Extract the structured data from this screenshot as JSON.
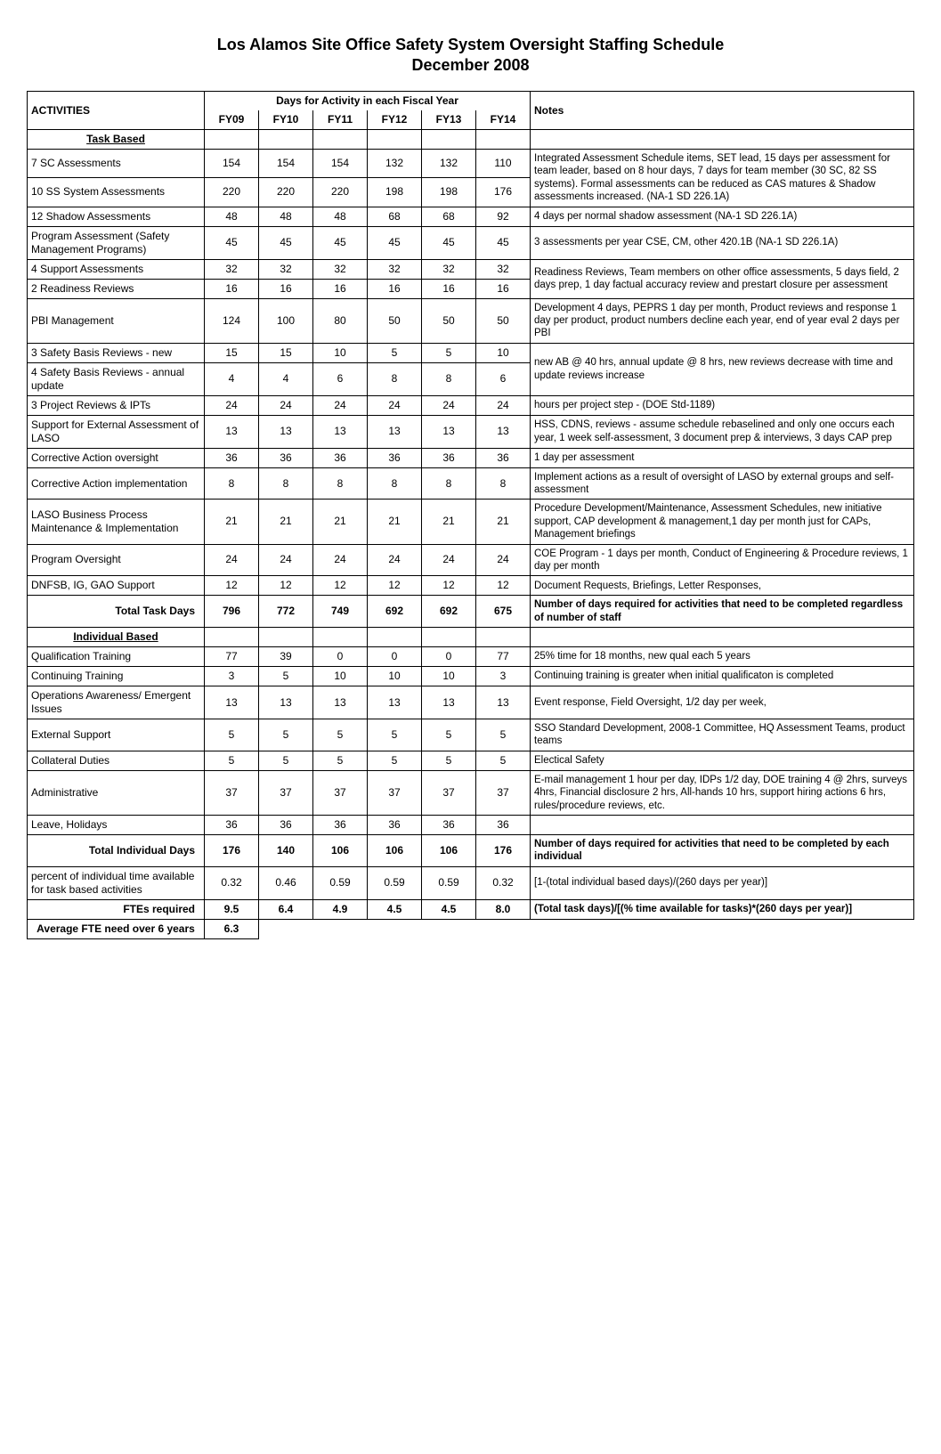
{
  "title": "Los Alamos Site Office Safety System Oversight Staffing Schedule",
  "subtitle": "December 2008",
  "header": {
    "activities": "ACTIVITIES",
    "fy_super": "Days for Activity in each Fiscal Year",
    "fy09": "FY09",
    "fy10": "FY10",
    "fy11": "FY11",
    "fy12": "FY12",
    "fy13": "FY13",
    "fy14": "FY14",
    "notes": "Notes"
  },
  "sections": {
    "task_based": "Task Based",
    "individual_based": "Individual Based"
  },
  "rows": {
    "r1": {
      "act": "7 SC Assessments",
      "v": [
        "154",
        "154",
        "154",
        "132",
        "132",
        "110"
      ],
      "note": "Integrated Assessment Schedule items, SET lead, 15 days per assessment for team leader, based on 8 hour days, 7 days for team member (30 SC, 82 SS systems).  Formal assessments can be reduced as CAS matures & Shadow assessments increased.  (NA-1 SD 226.1A)",
      "rowspan_note": 2
    },
    "r2": {
      "act": "10 SS System Assessments",
      "v": [
        "220",
        "220",
        "220",
        "198",
        "198",
        "176"
      ]
    },
    "r3": {
      "act": "12 Shadow Assessments",
      "v": [
        "48",
        "48",
        "48",
        "68",
        "68",
        "92"
      ],
      "note": "4 days per normal shadow assessment (NA-1 SD 226.1A)"
    },
    "r4": {
      "act": "Program Assessment (Safety Management Programs)",
      "v": [
        "45",
        "45",
        "45",
        "45",
        "45",
        "45"
      ],
      "note": "3 assessments per year CSE, CM, other 420.1B (NA-1 SD 226.1A)"
    },
    "r5": {
      "act": "4 Support Assessments",
      "v": [
        "32",
        "32",
        "32",
        "32",
        "32",
        "32"
      ],
      "note": "Readiness Reviews, Team members on other office assessments, 5 days field, 2 days prep, 1 day factual accuracy review and prestart closure per assessment",
      "rowspan_note": 2
    },
    "r6": {
      "act": "2 Readiness Reviews",
      "v": [
        "16",
        "16",
        "16",
        "16",
        "16",
        "16"
      ]
    },
    "r7": {
      "act": "PBI Management",
      "v": [
        "124",
        "100",
        "80",
        "50",
        "50",
        "50"
      ],
      "note": "Development 4 days, PEPRS 1 day per month, Product reviews and response 1 day per product, product numbers decline each year, end of year eval 2 days per PBI"
    },
    "r8": {
      "act": "3 Safety Basis Reviews - new",
      "v": [
        "15",
        "15",
        "10",
        "5",
        "5",
        "10"
      ],
      "note": "new AB @ 40 hrs, annual update @ 8 hrs, new reviews decrease with time and update reviews increase",
      "rowspan_note": 2
    },
    "r9": {
      "act": "4 Safety Basis Reviews - annual update",
      "v": [
        "4",
        "4",
        "6",
        "8",
        "8",
        "6"
      ]
    },
    "r10": {
      "act": "3 Project Reviews & IPTs",
      "v": [
        "24",
        "24",
        "24",
        "24",
        "24",
        "24"
      ],
      "note": "hours per project step - (DOE Std-1189)"
    },
    "r11": {
      "act": "Support for External Assessment of LASO",
      "v": [
        "13",
        "13",
        "13",
        "13",
        "13",
        "13"
      ],
      "note": "HSS, CDNS, reviews - assume schedule rebaselined and only one occurs each year, 1 week self-assessment, 3 document prep & interviews, 3 days CAP prep"
    },
    "r12": {
      "act": "Corrective Action oversight",
      "v": [
        "36",
        "36",
        "36",
        "36",
        "36",
        "36"
      ],
      "note": "1 day per assessment"
    },
    "r13": {
      "act": "Corrective Action implementation",
      "v": [
        "8",
        "8",
        "8",
        "8",
        "8",
        "8"
      ],
      "note": "Implement actions as a result of oversight of LASO by external groups and self-assessment"
    },
    "r14": {
      "act": "LASO Business Process Maintenance & Implementation",
      "v": [
        "21",
        "21",
        "21",
        "21",
        "21",
        "21"
      ],
      "note": "Procedure Development/Maintenance, Assessment Schedules, new initiative support, CAP development & management,1 day per month just for CAPs, Management briefings"
    },
    "r15": {
      "act": "Program Oversight",
      "v": [
        "24",
        "24",
        "24",
        "24",
        "24",
        "24"
      ],
      "note": "COE Program - 1 days per month, Conduct of Engineering & Procedure reviews, 1 day per month"
    },
    "r16": {
      "act": "DNFSB, IG, GAO Support",
      "v": [
        "12",
        "12",
        "12",
        "12",
        "12",
        "12"
      ],
      "note": "Document Requests, Briefings, Letter Responses,"
    },
    "total_task": {
      "act": "Total Task Days",
      "v": [
        "796",
        "772",
        "749",
        "692",
        "692",
        "675"
      ],
      "note": "Number of days required for activities that need to be completed regardless of number of staff"
    },
    "i1": {
      "act": "Qualification Training",
      "v": [
        "77",
        "39",
        "0",
        "0",
        "0",
        "77"
      ],
      "note": "25% time for 18 months, new qual each 5 years"
    },
    "i2": {
      "act": "Continuing Training",
      "v": [
        "3",
        "5",
        "10",
        "10",
        "10",
        "3"
      ],
      "note": "Continuing training is greater when initial qualificaton is completed"
    },
    "i3": {
      "act": "Operations Awareness/ Emergent Issues",
      "v": [
        "13",
        "13",
        "13",
        "13",
        "13",
        "13"
      ],
      "note": "Event response, Field Oversight, 1/2 day per week,"
    },
    "i4": {
      "act": "External Support",
      "v": [
        "5",
        "5",
        "5",
        "5",
        "5",
        "5"
      ],
      "note": "SSO Standard Development, 2008-1 Committee, HQ Assessment Teams, product teams"
    },
    "i5": {
      "act": "Collateral Duties",
      "v": [
        "5",
        "5",
        "5",
        "5",
        "5",
        "5"
      ],
      "note": "Electical Safety"
    },
    "i6": {
      "act": "Administrative",
      "v": [
        "37",
        "37",
        "37",
        "37",
        "37",
        "37"
      ],
      "note": "E-mail management 1 hour per day, IDPs 1/2 day, DOE training  4 @ 2hrs, surveys 4hrs, Financial disclosure 2 hrs, All-hands 10 hrs, support hiring actions 6 hrs, rules/procedure reviews,  etc."
    },
    "i7": {
      "act": "Leave, Holidays",
      "v": [
        "36",
        "36",
        "36",
        "36",
        "36",
        "36"
      ],
      "note": ""
    },
    "total_ind": {
      "act": "Total Individual Days",
      "v": [
        "176",
        "140",
        "106",
        "106",
        "106",
        "176"
      ],
      "note": "Number of days required for activities that need to be completed by each individual"
    },
    "pct": {
      "act": "percent of individual time available for task based activities",
      "v": [
        "0.32",
        "0.46",
        "0.59",
        "0.59",
        "0.59",
        "0.32"
      ],
      "note": "[1-(total individual based days)/(260 days per year)]"
    },
    "fte": {
      "act": "FTEs required",
      "v": [
        "9.5",
        "6.4",
        "4.9",
        "4.5",
        "4.5",
        "8.0"
      ],
      "note": "(Total task days)/[(% time available for tasks)*(260 days per year)]"
    },
    "avg": {
      "act": "Average FTE need over 6 years",
      "v": [
        "6.3"
      ]
    }
  }
}
